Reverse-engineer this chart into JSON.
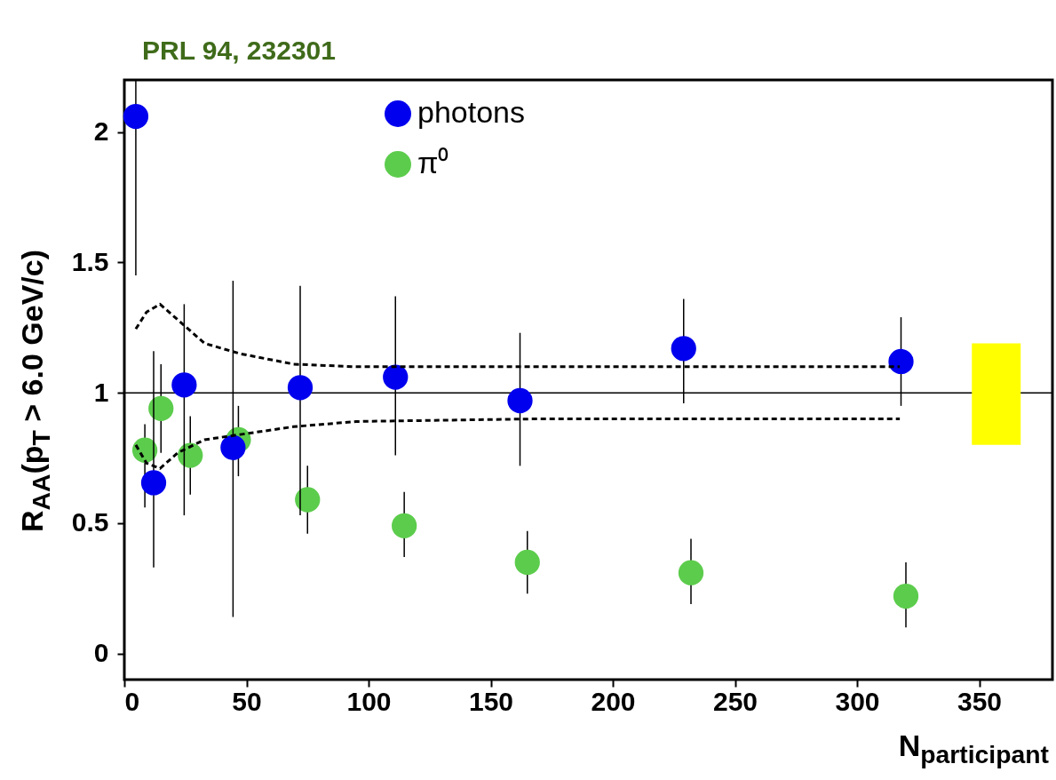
{
  "chart_data": {
    "type": "scatter",
    "xlabel": "N$_{participant}$",
    "ylabel": "R$_{AA}$(p$_{T}$ > 6.0 GeV/c)",
    "annotations": [
      "PRL 94, 232301"
    ],
    "xlim": [
      0,
      380
    ],
    "xticks": [
      0,
      50,
      100,
      150,
      200,
      250,
      300,
      350
    ],
    "ylim": [
      -0.1,
      2.2
    ],
    "yticks": [
      0,
      0.5,
      1,
      1.5,
      2
    ],
    "marker": "circle",
    "legend": "top",
    "grid": false,
    "ref_lines": [
      {
        "axis": "y",
        "value": 1,
        "color": "#000000",
        "line_style": "solid"
      }
    ],
    "series": [
      {
        "name": "photons",
        "color": "#0000ee",
        "x": [
          4.7,
          12,
          24.5,
          44.5,
          72,
          111,
          162,
          229,
          318
        ],
        "values": [
          2.06,
          0.655,
          1.03,
          0.79,
          1.02,
          1.06,
          0.97,
          1.17,
          1.12
        ],
        "errors": [
          [
            1.45,
            2.2
          ],
          [
            0.33,
            1.16
          ],
          [
            0.53,
            1.34
          ],
          [
            0.14,
            1.43
          ],
          [
            0.53,
            1.41
          ],
          [
            0.76,
            1.37
          ],
          [
            0.72,
            1.23
          ],
          [
            0.96,
            1.36
          ],
          [
            0.95,
            1.29
          ]
        ]
      },
      {
        "name": "π⁰",
        "color": "#5ccc4c",
        "x": [
          8.4,
          15,
          27,
          46.7,
          75,
          114.6,
          165,
          232,
          320
        ],
        "values": [
          0.78,
          0.94,
          0.76,
          0.82,
          0.59,
          0.49,
          0.35,
          0.31,
          0.22
        ],
        "errors": [
          [
            0.56,
            0.88
          ],
          [
            0.77,
            1.11
          ],
          [
            0.61,
            0.91
          ],
          [
            0.68,
            0.95
          ],
          [
            0.46,
            0.72
          ],
          [
            0.37,
            0.62
          ],
          [
            0.23,
            0.47
          ],
          [
            0.19,
            0.44
          ],
          [
            0.1,
            0.35
          ]
        ]
      },
      {
        "type": "line",
        "marker": "none",
        "line_style": "dashed",
        "color": "#000000",
        "x": [
          4.7,
          9.1,
          14.6,
          21.9,
          32.8,
          47.4,
          69.3,
          94.9,
          168,
          317.5
        ],
        "values": [
          1.245,
          1.31,
          1.34,
          1.28,
          1.19,
          1.15,
          1.11,
          1.1,
          1.1,
          1.1
        ]
      },
      {
        "type": "line",
        "marker": "none",
        "line_style": "dashed",
        "color": "#000000",
        "x": [
          4.7,
          9.1,
          14.6,
          21.9,
          32.8,
          47.4,
          69.3,
          94.9,
          168,
          317.5
        ],
        "values": [
          0.8,
          0.73,
          0.71,
          0.77,
          0.82,
          0.84,
          0.87,
          0.89,
          0.9,
          0.9
        ]
      },
      {
        "type": "bar",
        "color": "#ffff00",
        "x": [
          357
        ],
        "base": [
          0.8
        ],
        "values": [
          0.39
        ]
      }
    ]
  }
}
